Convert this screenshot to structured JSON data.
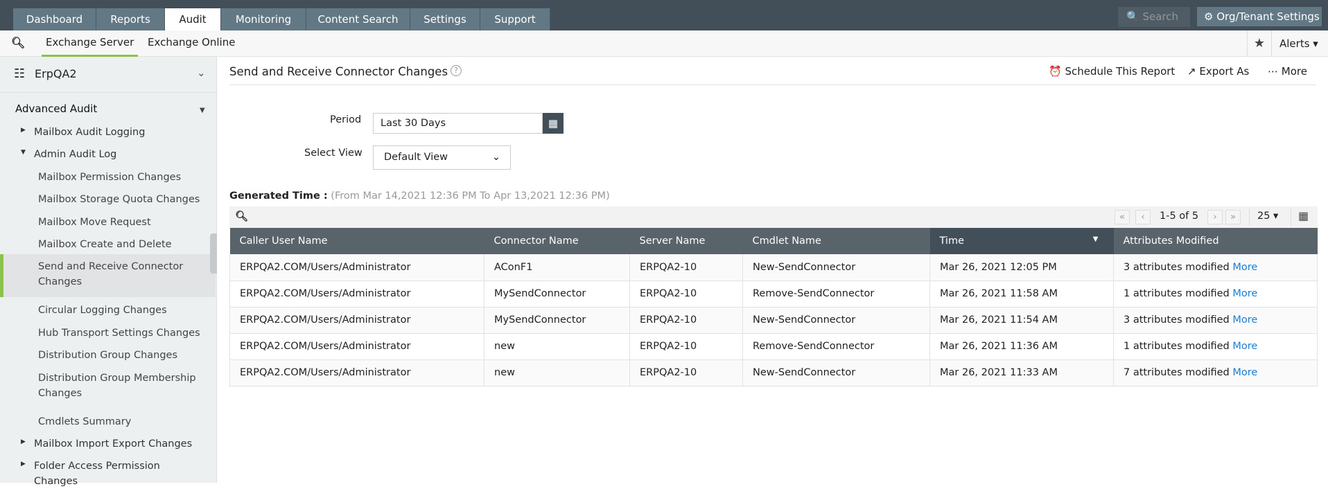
{
  "topnav": {
    "tabs": [
      "Dashboard",
      "Reports",
      "Audit",
      "Monitoring",
      "Content Search",
      "Settings",
      "Support"
    ],
    "active": "Audit",
    "search_placeholder": "Search",
    "org_settings": "Org/Tenant Settings"
  },
  "subnav": {
    "tabs": [
      "Exchange Server",
      "Exchange Online"
    ],
    "alerts": "Alerts"
  },
  "sidebar": {
    "domain": "ErpQA2",
    "section": "Advanced Audit",
    "items": [
      {
        "label": "Mailbox Audit Logging",
        "level": 1,
        "arrow": "right"
      },
      {
        "label": "Admin Audit Log",
        "level": 1,
        "arrow": "down"
      },
      {
        "label": "Mailbox Permission Changes",
        "level": 2
      },
      {
        "label": "Mailbox Storage Quota Changes",
        "level": 2
      },
      {
        "label": "Mailbox Move Request",
        "level": 2
      },
      {
        "label": "Mailbox Create and Delete",
        "level": 2
      },
      {
        "label": "Send and Receive Connector Changes",
        "level": 2,
        "selected": true
      },
      {
        "label": "Circular Logging Changes",
        "level": 2
      },
      {
        "label": "Hub Transport Settings Changes",
        "level": 2
      },
      {
        "label": "Distribution Group Changes",
        "level": 2
      },
      {
        "label": "Distribution Group Membership Changes",
        "level": 2
      },
      {
        "label": "Cmdlets Summary",
        "level": 2
      },
      {
        "label": "Mailbox Import Export Changes",
        "level": 1,
        "arrow": "right"
      },
      {
        "label": "Folder Access Permission Changes",
        "level": 1,
        "arrow": "right"
      }
    ]
  },
  "report": {
    "title": "Send and Receive Connector Changes",
    "schedule": "Schedule This Report",
    "export": "Export As",
    "more": "More",
    "period_label": "Period",
    "period_value": "Last 30 Days",
    "view_label": "Select View",
    "view_value": "Default View",
    "generated_label": "Generated Time :",
    "generated_value": "(From Mar 14,2021 12:36 PM To Apr 13,2021 12:36 PM)",
    "pagination": "1-5 of 5",
    "page_size": "25"
  },
  "table": {
    "columns": [
      "Caller User Name",
      "Connector Name",
      "Server Name",
      "Cmdlet Name",
      "Time",
      "Attributes Modified"
    ],
    "rows": [
      [
        "ERPQA2.COM/Users/Administrator",
        "AConF1",
        "ERPQA2-10",
        "New-SendConnector",
        "Mar 26, 2021 12:05 PM",
        "3 attributes modified"
      ],
      [
        "ERPQA2.COM/Users/Administrator",
        "MySendConnector",
        "ERPQA2-10",
        "Remove-SendConnector",
        "Mar 26, 2021 11:58 AM",
        "1 attributes modified"
      ],
      [
        "ERPQA2.COM/Users/Administrator",
        "MySendConnector",
        "ERPQA2-10",
        "New-SendConnector",
        "Mar 26, 2021 11:54 AM",
        "3 attributes modified"
      ],
      [
        "ERPQA2.COM/Users/Administrator",
        "new",
        "ERPQA2-10",
        "Remove-SendConnector",
        "Mar 26, 2021 11:36 AM",
        "1 attributes modified"
      ],
      [
        "ERPQA2.COM/Users/Administrator",
        "new",
        "ERPQA2-10",
        "New-SendConnector",
        "Mar 26, 2021 11:33 AM",
        "7 attributes modified"
      ]
    ],
    "more_link": "More"
  },
  "colors": {
    "topbar": "#434f58",
    "tab": "#627884",
    "accent": "#8bc34a",
    "link": "#1a7ed6"
  }
}
